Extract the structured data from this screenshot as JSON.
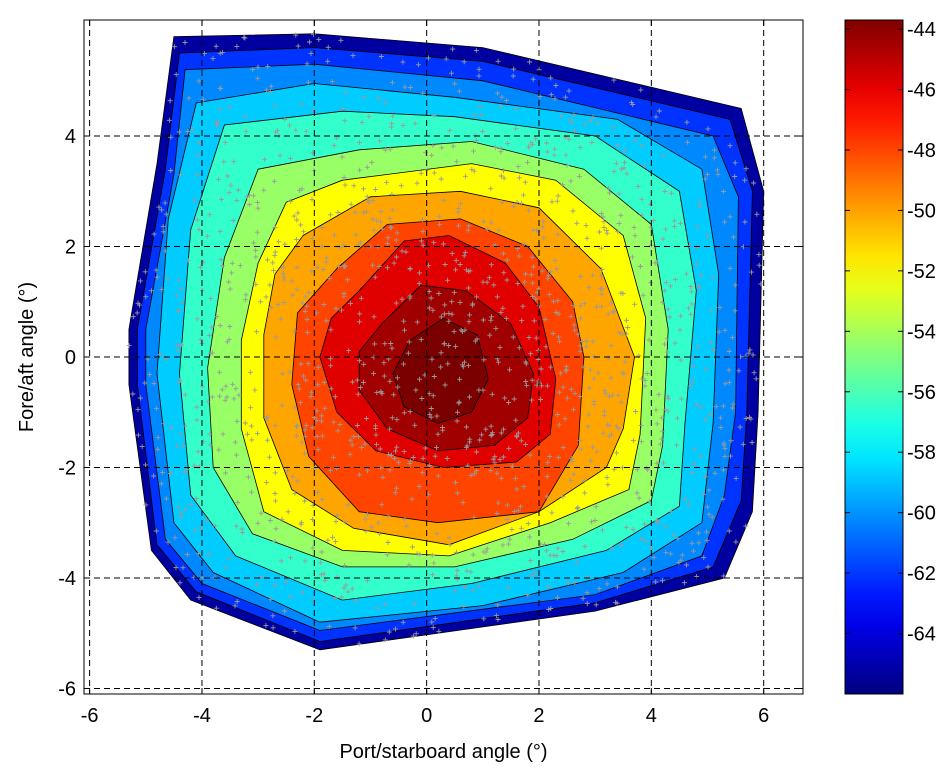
{
  "chart_data": {
    "type": "filled-contour",
    "title": "",
    "xlabel": "Port/starboard angle (°)",
    "ylabel": "Fore/aft angle (°)",
    "xlim": [
      -6.1,
      6.7
    ],
    "ylim": [
      -6.1,
      6.1
    ],
    "xticks": [
      -6,
      -4,
      -2,
      0,
      2,
      4,
      6
    ],
    "xtick_labels": [
      "-6",
      "-4",
      "-2",
      "0",
      "2",
      "4",
      "6"
    ],
    "yticks": [
      -6,
      -4,
      -2,
      0,
      2,
      4
    ],
    "ytick_labels": [
      "-6",
      "-4",
      "-2",
      "0",
      "2",
      "4"
    ],
    "grid": true,
    "colormap": "jet",
    "colorbar": {
      "placement": "right",
      "range": [
        -66,
        -43.7
      ],
      "ticks": [
        -44,
        -46,
        -48,
        -50,
        -52,
        -54,
        -56,
        -58,
        -60,
        -62,
        -64
      ],
      "tick_labels": [
        "-44",
        "-46",
        "-48",
        "-50",
        "-52",
        "-54",
        "-56",
        "-58",
        "-60",
        "-62",
        "-64"
      ]
    },
    "peak": {
      "x": 0.2,
      "y": -0.4,
      "level": -44
    },
    "marker": "+",
    "marker_color": "#9a9a9a",
    "contour_levels": [
      {
        "level": -66,
        "color": "#0000a0",
        "boundary": [
          [
            -4.5,
            5.8
          ],
          [
            -2,
            5.85
          ],
          [
            1,
            5.6
          ],
          [
            5.6,
            4.5
          ],
          [
            6,
            3
          ],
          [
            5.9,
            -1
          ],
          [
            5.8,
            -2.8
          ],
          [
            5.3,
            -4
          ],
          [
            3,
            -4.6
          ],
          [
            -1.9,
            -5.3
          ],
          [
            -4.2,
            -4.4
          ],
          [
            -4.9,
            -3.5
          ],
          [
            -5.3,
            -0.5
          ],
          [
            -5.3,
            0.5
          ],
          [
            -4.8,
            3.5
          ]
        ]
      },
      {
        "level": -64,
        "color": "#0033ff",
        "boundary": [
          [
            -4.4,
            5.5
          ],
          [
            -2,
            5.6
          ],
          [
            1,
            5.35
          ],
          [
            5.4,
            4.3
          ],
          [
            5.8,
            3
          ],
          [
            5.7,
            -1
          ],
          [
            5.6,
            -2.6
          ],
          [
            5.1,
            -3.8
          ],
          [
            3,
            -4.45
          ],
          [
            -1.9,
            -5.15
          ],
          [
            -4.1,
            -4.25
          ],
          [
            -4.8,
            -3.4
          ],
          [
            -5.15,
            -0.5
          ],
          [
            -5.15,
            0.5
          ],
          [
            -4.65,
            3.4
          ]
        ]
      },
      {
        "level": -62,
        "color": "#0088ff",
        "boundary": [
          [
            -4.3,
            5.2
          ],
          [
            -2,
            5.3
          ],
          [
            1,
            5
          ],
          [
            5.1,
            4
          ],
          [
            5.55,
            2.9
          ],
          [
            5.5,
            -1
          ],
          [
            5.3,
            -2.5
          ],
          [
            4.9,
            -3.6
          ],
          [
            3,
            -4.3
          ],
          [
            -1.9,
            -4.95
          ],
          [
            -4,
            -4.1
          ],
          [
            -4.65,
            -3.3
          ],
          [
            -5,
            -0.5
          ],
          [
            -5,
            0.5
          ],
          [
            -4.5,
            3.3
          ]
        ]
      },
      {
        "level": -60,
        "color": "#00ccff",
        "boundary": [
          [
            -4.1,
            4.6
          ],
          [
            -2,
            4.95
          ],
          [
            0.5,
            4.7
          ],
          [
            3.4,
            4.3
          ],
          [
            4.9,
            3.4
          ],
          [
            5.2,
            1.5
          ],
          [
            5.1,
            -1.2
          ],
          [
            4.9,
            -3
          ],
          [
            3.5,
            -3.9
          ],
          [
            1,
            -4.5
          ],
          [
            -1.9,
            -4.8
          ],
          [
            -3.8,
            -3.9
          ],
          [
            -4.5,
            -3
          ],
          [
            -4.8,
            -0.3
          ],
          [
            -4.6,
            2.5
          ]
        ]
      },
      {
        "level": -58,
        "color": "#33ffcc",
        "boundary": [
          [
            -3.6,
            4.2
          ],
          [
            -1.5,
            4.45
          ],
          [
            0.5,
            4.35
          ],
          [
            3,
            4
          ],
          [
            4.5,
            3
          ],
          [
            4.8,
            1.2
          ],
          [
            4.6,
            -1.2
          ],
          [
            4.5,
            -2.7
          ],
          [
            3.2,
            -3.5
          ],
          [
            0.8,
            -4.1
          ],
          [
            -1.5,
            -4.4
          ],
          [
            -3.4,
            -3.6
          ],
          [
            -4.2,
            -2.5
          ],
          [
            -4.4,
            -0.3
          ],
          [
            -4.2,
            2.3
          ]
        ]
      },
      {
        "level": -56,
        "color": "#99ff66",
        "boundary": [
          [
            -3,
            3.4
          ],
          [
            -1.2,
            3.75
          ],
          [
            0.8,
            3.9
          ],
          [
            2.8,
            3.4
          ],
          [
            4,
            2.4
          ],
          [
            4.3,
            0.5
          ],
          [
            4.2,
            -1.6
          ],
          [
            4,
            -2.6
          ],
          [
            2.6,
            -3.3
          ],
          [
            0.5,
            -3.8
          ],
          [
            -1.5,
            -3.8
          ],
          [
            -3.1,
            -3.2
          ],
          [
            -3.8,
            -2
          ],
          [
            -3.9,
            -0.2
          ],
          [
            -3.6,
            1.8
          ]
        ]
      },
      {
        "level": -54,
        "color": "#ffff00",
        "boundary": [
          [
            -2.5,
            2.8
          ],
          [
            -1.5,
            3.2
          ],
          [
            0.8,
            3.5
          ],
          [
            2.3,
            3.2
          ],
          [
            3.5,
            2.2
          ],
          [
            3.9,
            0.7
          ],
          [
            3.8,
            -1.4
          ],
          [
            3.6,
            -2.4
          ],
          [
            2.2,
            -3
          ],
          [
            0.4,
            -3.6
          ],
          [
            -1.5,
            -3.5
          ],
          [
            -2.9,
            -2.8
          ],
          [
            -3.3,
            -1.3
          ],
          [
            -3.3,
            0.3
          ],
          [
            -3,
            1.7
          ]
        ]
      },
      {
        "level": -52,
        "color": "#ffa500",
        "boundary": [
          [
            -2.2,
            2.2
          ],
          [
            -1,
            2.9
          ],
          [
            0.6,
            3
          ],
          [
            2,
            2.7
          ],
          [
            3.1,
            1.6
          ],
          [
            3.7,
            0
          ],
          [
            3.5,
            -1.3
          ],
          [
            3.2,
            -2
          ],
          [
            2,
            -2.8
          ],
          [
            0.4,
            -3.4
          ],
          [
            -1.3,
            -3.1
          ],
          [
            -2.4,
            -2.4
          ],
          [
            -2.9,
            -1.1
          ],
          [
            -2.9,
            0.4
          ],
          [
            -2.7,
            1.5
          ]
        ]
      },
      {
        "level": -50,
        "color": "#ff4400",
        "boundary": [
          [
            -1.6,
            1.6
          ],
          [
            -0.7,
            2.4
          ],
          [
            0.6,
            2.5
          ],
          [
            1.8,
            2
          ],
          [
            2.6,
            1
          ],
          [
            2.8,
            0
          ],
          [
            2.7,
            -1.6
          ],
          [
            2,
            -2.8
          ],
          [
            0.2,
            -3
          ],
          [
            -1.2,
            -2.8
          ],
          [
            -2.1,
            -1.8
          ],
          [
            -2.4,
            -0.5
          ],
          [
            -2.3,
            0.8
          ]
        ]
      },
      {
        "level": -48,
        "color": "#e00000",
        "boundary": [
          [
            -1.2,
            1.2
          ],
          [
            -0.4,
            2.1
          ],
          [
            0.4,
            2.2
          ],
          [
            1.4,
            1.7
          ],
          [
            2,
            0.9
          ],
          [
            2.3,
            -0.4
          ],
          [
            2.2,
            -1.4
          ],
          [
            1.6,
            -1.9
          ],
          [
            0.3,
            -2
          ],
          [
            -0.9,
            -1.7
          ],
          [
            -1.6,
            -1
          ],
          [
            -1.9,
            0
          ],
          [
            -1.7,
            0.7
          ]
        ]
      },
      {
        "level": -46,
        "color": "#a00000",
        "boundary": [
          [
            -0.8,
            0.6
          ],
          [
            -0.1,
            1.3
          ],
          [
            0.7,
            1.2
          ],
          [
            1.5,
            0.6
          ],
          [
            1.9,
            -0.3
          ],
          [
            1.8,
            -1.1
          ],
          [
            1.2,
            -1.6
          ],
          [
            0.2,
            -1.7
          ],
          [
            -0.7,
            -1.3
          ],
          [
            -1.2,
            -0.6
          ],
          [
            -1.2,
            0.1
          ]
        ]
      },
      {
        "level": -44,
        "color": "#7a0000",
        "boundary": [
          [
            -0.3,
            0.3
          ],
          [
            0.3,
            0.7
          ],
          [
            0.9,
            0.4
          ],
          [
            1.1,
            -0.4
          ],
          [
            0.8,
            -1
          ],
          [
            0.2,
            -1.2
          ],
          [
            -0.4,
            -0.9
          ],
          [
            -0.6,
            -0.3
          ]
        ]
      }
    ]
  }
}
